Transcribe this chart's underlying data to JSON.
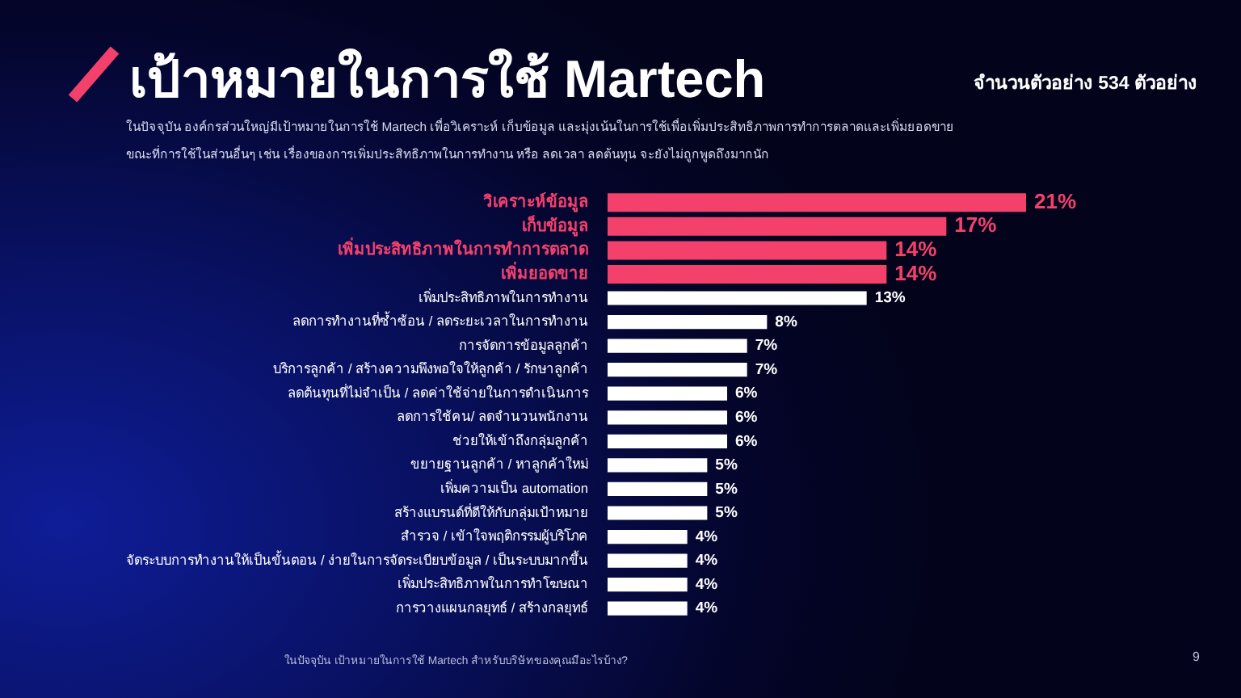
{
  "chart_data": {
    "type": "bar",
    "orientation": "horizontal",
    "title": "เป้าหมายในการใช้ Martech",
    "subtitle": "ในปัจจุบัน องค์กรส่วนใหญ่มีเป้าหมายในการใช้ Martech เพื่อวิเคราะห์ เก็บข้อมูล และมุ่งเน้นในการใช้เพื่อเพิ่มประสิทธิภาพการทำการตลาดและเพิ่มยอดขาย ขณะที่การใช้ในส่วนอื่นๆ เช่น เรื่องของการเพิ่มประสิทธิภาพในการทำงาน หรือ ลดเวลา ลดต้นทุน จะยังไม่ถูกพูดถึงมากนัก",
    "categories": [
      "วิเคราะห์ข้อมูล",
      "เก็บข้อมูล",
      "เพิ่มประสิทธิภาพในการทำการตลาด",
      "เพิ่มยอดขาย",
      "เพิ่มประสิทธิภาพในการทำงาน",
      "ลดการทำงานที่ซ้ำซ้อน / ลดระยะเวลาในการทำงาน",
      "การจัดการข้อมูลลูกค้า",
      "บริการลูกค้า / สร้างความพึงพอใจให้ลูกค้า / รักษาลูกค้า",
      "ลดต้นทุนที่ไม่จำเป็น / ลดค่าใช้จ่ายในการดำเนินการ",
      "ลดการใช้คน/ ลดจำนวนพนักงาน",
      "ช่วยให้เข้าถึงกลุ่มลูกค้า",
      "ขยายฐานลูกค้า / หาลูกค้าใหม่",
      "เพิ่มความเป็น automation",
      "สร้างแบรนด์ที่ดีให้กับกลุ่มเป้าหมาย",
      "สำรวจ / เข้าใจพฤติกรรมผู้บริโภค",
      "จัดระบบการทำงานให้เป็นขั้นตอน / ง่ายในการจัดระเบียบข้อมูล / เป็นระบบมากขึ้น",
      "เพิ่มประสิทธิภาพในการทำโฆษณา",
      "การวางแผนกลยุทธ์ / สร้างกลยุทธ์"
    ],
    "values": [
      21,
      17,
      14,
      14,
      13,
      8,
      7,
      7,
      6,
      6,
      6,
      5,
      5,
      5,
      4,
      4,
      4,
      4
    ],
    "value_labels": [
      "21%",
      "17%",
      "14%",
      "14%",
      "13%",
      "8%",
      "7%",
      "7%",
      "6%",
      "6%",
      "6%",
      "5%",
      "5%",
      "5%",
      "4%",
      "4%",
      "4%",
      "4%"
    ],
    "colors": [
      "#f4416c",
      "#f4416c",
      "#f4416c",
      "#f4416c",
      "#ffffff",
      "#ffffff",
      "#ffffff",
      "#ffffff",
      "#ffffff",
      "#ffffff",
      "#ffffff",
      "#ffffff",
      "#ffffff",
      "#ffffff",
      "#ffffff",
      "#ffffff",
      "#ffffff",
      "#ffffff"
    ],
    "annotations": [
      "จำนวนตัวอย่าง 534 ตัวอย่าง",
      "ในปัจจุบัน เป้าหมายในการใช้ Martech สำหรับบริษัทของคุณมีอะไรบ้าง?",
      "9"
    ]
  }
}
